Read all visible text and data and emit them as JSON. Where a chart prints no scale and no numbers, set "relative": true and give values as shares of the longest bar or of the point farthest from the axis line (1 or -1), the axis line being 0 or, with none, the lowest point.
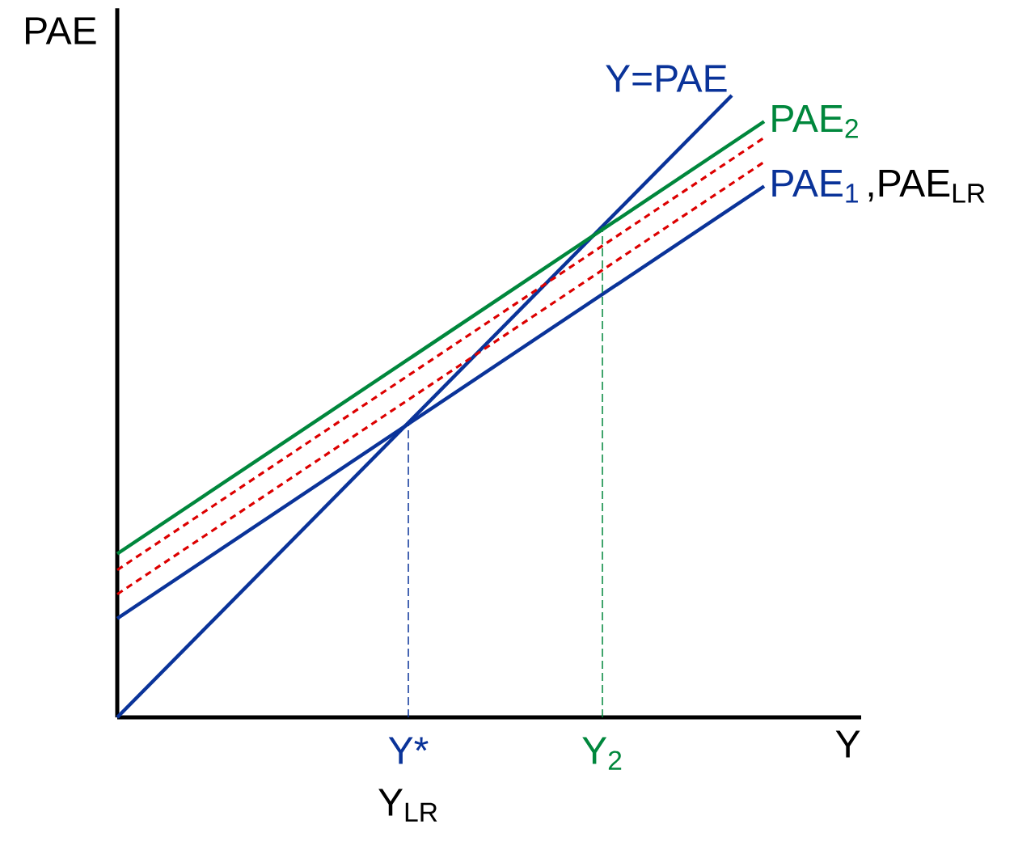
{
  "chart_data": {
    "type": "line",
    "relative": true,
    "xlabel": "Y",
    "ylabel": "PAE",
    "categories": [
      null,
      null,
      null,
      null,
      null,
      null,
      null,
      null,
      null,
      null,
      null,
      null,
      null,
      null,
      null,
      null,
      null,
      null,
      "Y*",
      null,
      null,
      null,
      null,
      null,
      null,
      null,
      null,
      null,
      null,
      null,
      "Y$_{2}$",
      null,
      null,
      null,
      null,
      null,
      null,
      null,
      null,
      null,
      null
    ],
    "series": [
      {
        "name": "Y=PAE",
        "color": "#0a3399",
        "values": [
          0,
          null,
          null,
          null,
          null,
          null,
          null,
          null,
          null,
          null,
          null,
          null,
          null,
          null,
          null,
          null,
          null,
          null,
          null,
          null,
          null,
          null,
          null,
          null,
          null,
          null,
          null,
          null,
          null,
          null,
          null,
          null,
          null,
          null,
          null,
          null,
          null,
          null,
          1,
          null,
          null
        ]
      },
      {
        "name": "PAE$_{2}$",
        "color": "#00873c",
        "values": [
          0.263,
          null,
          null,
          null,
          null,
          null,
          null,
          null,
          null,
          null,
          null,
          null,
          null,
          null,
          null,
          null,
          null,
          null,
          null,
          null,
          null,
          null,
          null,
          null,
          null,
          null,
          null,
          null,
          null,
          null,
          null,
          null,
          null,
          null,
          null,
          null,
          null,
          null,
          null,
          null,
          0.958
        ]
      },
      {
        "color": "#dd0000",
        "line_style": "dashed",
        "values": [
          0.237,
          null,
          null,
          null,
          null,
          null,
          null,
          null,
          null,
          null,
          null,
          null,
          null,
          null,
          null,
          null,
          null,
          null,
          null,
          null,
          null,
          null,
          null,
          null,
          null,
          null,
          null,
          null,
          null,
          null,
          null,
          null,
          null,
          null,
          null,
          null,
          null,
          null,
          null,
          null,
          0.932
        ]
      },
      {
        "color": "#dd0000",
        "line_style": "dashed",
        "values": [
          0.198,
          null,
          null,
          null,
          null,
          null,
          null,
          null,
          null,
          null,
          null,
          null,
          null,
          null,
          null,
          null,
          null,
          null,
          null,
          null,
          null,
          null,
          null,
          null,
          null,
          null,
          null,
          null,
          null,
          null,
          null,
          null,
          null,
          null,
          null,
          null,
          null,
          null,
          null,
          null,
          0.893
        ]
      },
      {
        "name": "PAE$_{1}$",
        "color": "#0a3399",
        "values": [
          0.159,
          null,
          null,
          null,
          null,
          null,
          null,
          null,
          null,
          null,
          null,
          null,
          null,
          null,
          null,
          null,
          null,
          null,
          null,
          null,
          null,
          null,
          null,
          null,
          null,
          null,
          null,
          null,
          null,
          null,
          null,
          null,
          null,
          null,
          null,
          null,
          null,
          null,
          null,
          null,
          0.854
        ]
      }
    ],
    "ref_lines": [
      {
        "axis": "x",
        "value": "Y*",
        "color": "#0a3399",
        "line_style": "dashed"
      },
      {
        "axis": "x",
        "value": "Y$_{2}$",
        "color": "#00873c",
        "line_style": "dashed"
      }
    ],
    "annotations": [
      "Y$_{LR}$",
      ",PAE$_{LR}$"
    ]
  }
}
